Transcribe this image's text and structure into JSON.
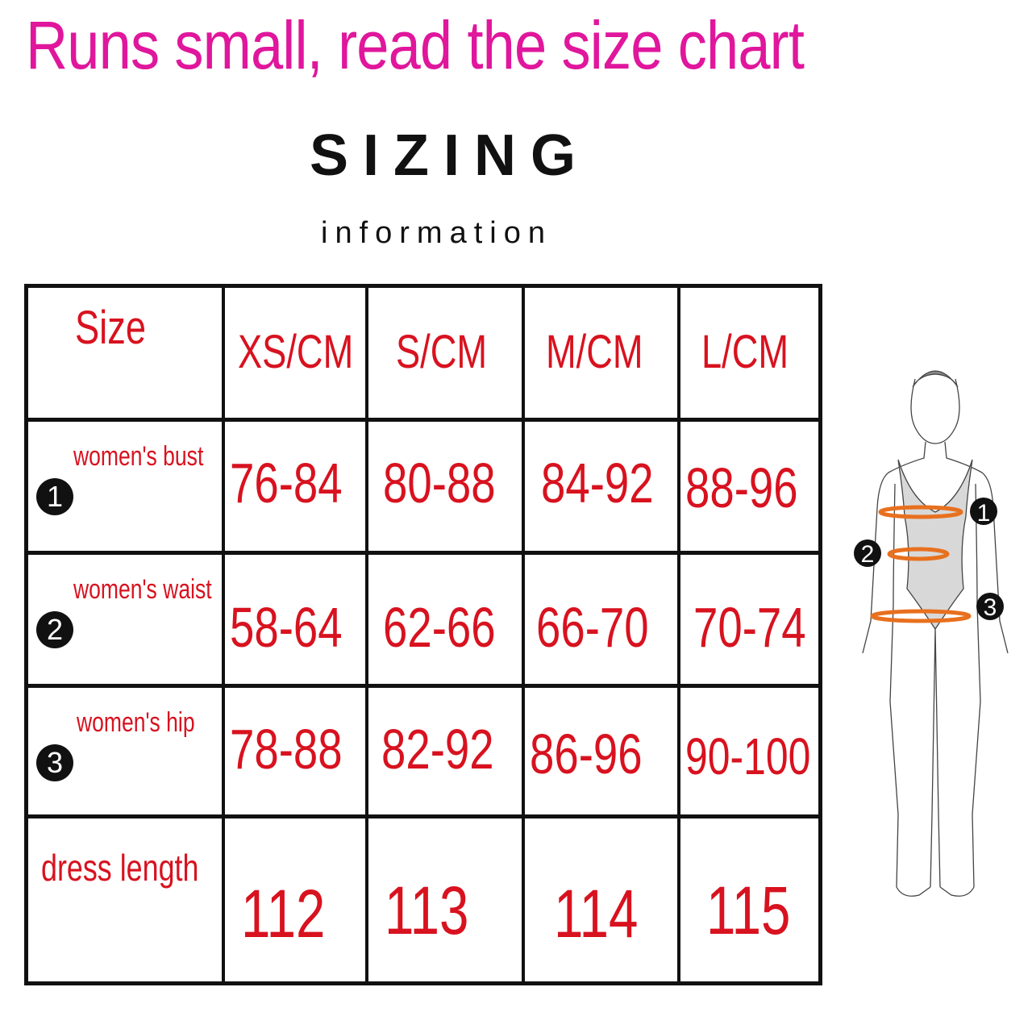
{
  "headline": "Runs small, read the size chart",
  "title": "SIZING",
  "subtitle": "information",
  "table": {
    "corner": "Size",
    "columns": [
      "XS/CM",
      "S/CM",
      "M/CM",
      "L/CM"
    ],
    "rows": [
      {
        "marker": "1",
        "label": "women's bust",
        "values": [
          "76-84",
          "80-88",
          "84-92",
          "88-96"
        ]
      },
      {
        "marker": "2",
        "label": "women's waist",
        "values": [
          "58-64",
          "62-66",
          "66-70",
          "70-74"
        ]
      },
      {
        "marker": "3",
        "label": "women's  hip",
        "values": [
          "78-88",
          "82-92",
          "86-96",
          "90-100"
        ]
      },
      {
        "marker": "",
        "label": "dress length",
        "values": [
          "112",
          "113",
          "114",
          "115"
        ]
      }
    ]
  },
  "figure": {
    "markers": [
      "1",
      "2",
      "3"
    ]
  },
  "colors": {
    "headline": "#e0169c",
    "table_text": "#d8121f",
    "measure_ring": "#e8701e",
    "marker": "#111111"
  }
}
